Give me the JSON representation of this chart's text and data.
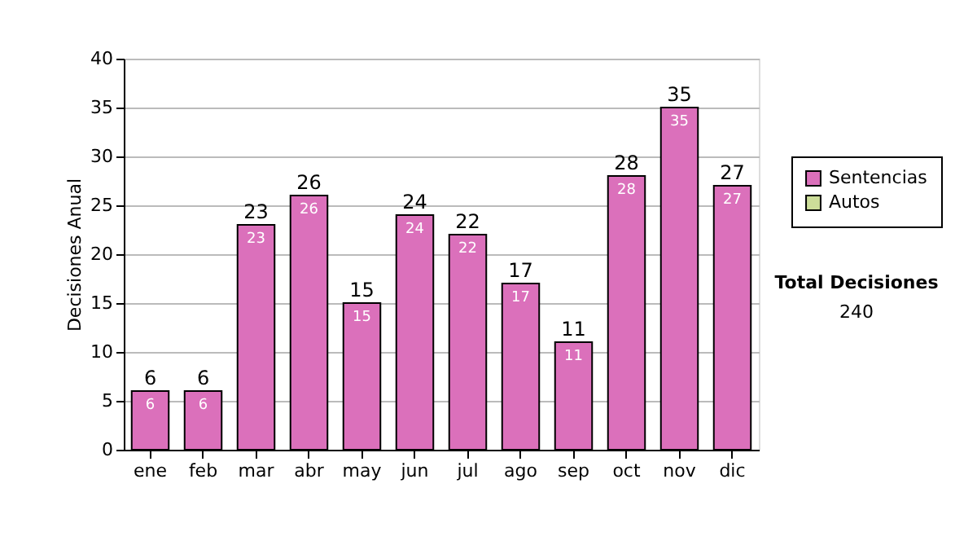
{
  "chart_data": {
    "type": "bar",
    "ylabel": "Decisiones Anual",
    "categories": [
      "ene",
      "feb",
      "mar",
      "abr",
      "may",
      "jun",
      "jul",
      "ago",
      "sep",
      "oct",
      "nov",
      "dic"
    ],
    "series": [
      {
        "name": "Sentencias",
        "color": "#db70bb",
        "values": [
          6,
          6,
          23,
          26,
          15,
          24,
          22,
          17,
          11,
          28,
          35,
          27
        ]
      },
      {
        "name": "Autos",
        "color": "#ccdd99",
        "values": [
          null,
          null,
          null,
          null,
          null,
          null,
          null,
          null,
          null,
          null,
          null,
          null
        ]
      }
    ],
    "data_labels": true,
    "totals": [
      "6",
      "6",
      "23",
      "26",
      "15",
      "24",
      "22",
      "17",
      "11",
      "28",
      "35",
      "27"
    ],
    "ylim": [
      0,
      40
    ],
    "yticks": [
      0,
      5,
      10,
      15,
      20,
      25,
      30,
      35,
      40
    ],
    "grid": "y",
    "legend": "right",
    "annotations": [
      "Total Decisiones",
      "240"
    ]
  }
}
